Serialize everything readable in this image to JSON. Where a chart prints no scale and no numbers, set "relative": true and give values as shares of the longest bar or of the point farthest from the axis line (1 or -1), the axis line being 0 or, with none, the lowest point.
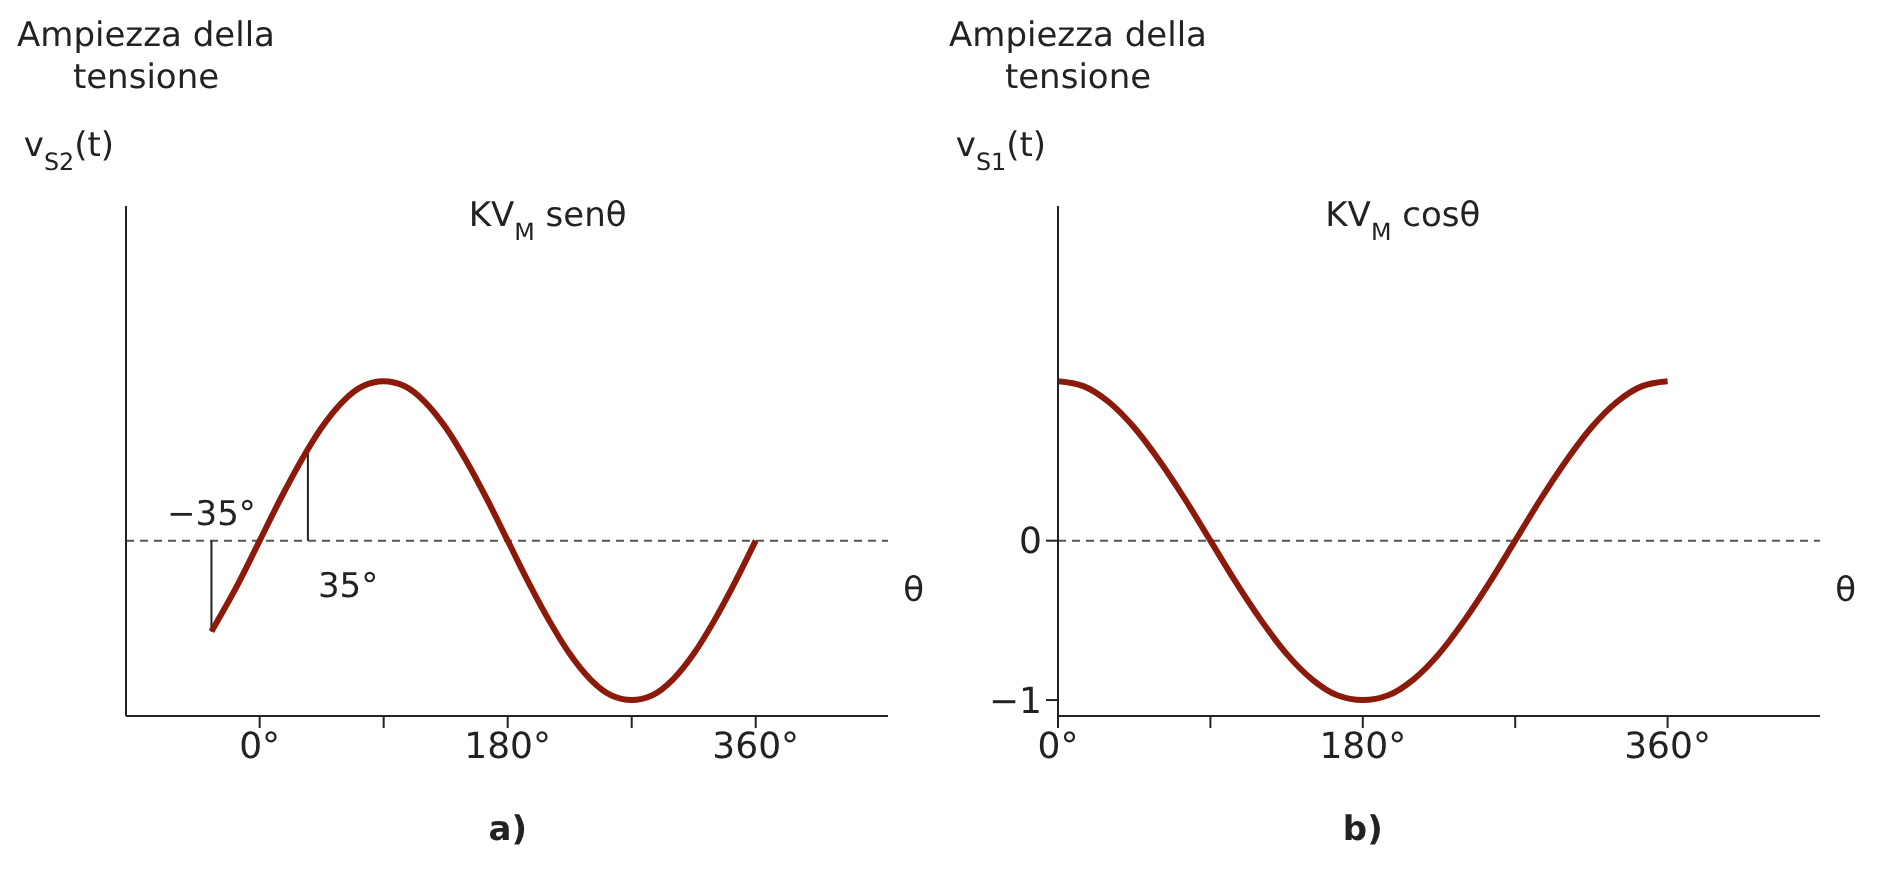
{
  "chart_data": [
    {
      "type": "line",
      "title": "Ampiezza della tensione",
      "ylabel": "v$_{S2}$(t)",
      "xlabel": "θ",
      "relative": true,
      "marker": "none",
      "line_style": "solid",
      "grid": false,
      "legend": false,
      "x": [
        -35,
        -15,
        0,
        15,
        30,
        45,
        60,
        75,
        90,
        105,
        120,
        135,
        150,
        165,
        180,
        195,
        210,
        225,
        240,
        255,
        270,
        285,
        300,
        315,
        330,
        345,
        360
      ],
      "series": [
        {
          "color": "#8b1a0a",
          "values": [
            -0.57,
            -0.26,
            0,
            0.26,
            0.5,
            0.71,
            0.87,
            0.97,
            1,
            0.97,
            0.87,
            0.71,
            0.5,
            0.26,
            0,
            -0.26,
            -0.5,
            -0.71,
            -0.87,
            -0.97,
            -1,
            -0.97,
            -0.87,
            -0.71,
            -0.5,
            -0.26,
            0
          ]
        }
      ],
      "xlim": [
        -97,
        456
      ],
      "xticks": [
        {
          "value": 0,
          "label": "0°"
        },
        {
          "value": 90,
          "label": null
        },
        {
          "value": 180,
          "label": "180°"
        },
        {
          "value": 270,
          "label": null
        },
        {
          "value": 360,
          "label": "360°"
        }
      ],
      "ref_lines": [
        {
          "axis": "y",
          "value": 0,
          "line_style": "dashed",
          "color": "#555555"
        }
      ],
      "annotations": [
        "KV$_{M}$ senθ",
        {
          "text": "−35°",
          "x": -35,
          "y": -0.57
        },
        {
          "text": "35°",
          "x": 35,
          "y": 0.57
        },
        "a)"
      ]
    },
    {
      "type": "line",
      "title": "Ampiezza della tensione",
      "ylabel": "v$_{S1}$(t)",
      "xlabel": "θ",
      "marker": "none",
      "line_style": "solid",
      "grid": false,
      "legend": false,
      "x": [
        0,
        15,
        30,
        45,
        60,
        75,
        90,
        105,
        120,
        135,
        150,
        165,
        180,
        195,
        210,
        225,
        240,
        255,
        270,
        285,
        300,
        315,
        330,
        345,
        360
      ],
      "series": [
        {
          "color": "#8b1a0a",
          "values": [
            1,
            0.97,
            0.87,
            0.71,
            0.5,
            0.26,
            0,
            -0.26,
            -0.5,
            -0.71,
            -0.87,
            -0.97,
            -1,
            -0.97,
            -0.87,
            -0.71,
            -0.5,
            -0.26,
            0,
            0.26,
            0.5,
            0.71,
            0.87,
            0.97,
            1
          ]
        }
      ],
      "xlim": [
        0,
        450
      ],
      "xticks": [
        {
          "value": 0,
          "label": "0°"
        },
        {
          "value": 90,
          "label": null
        },
        {
          "value": 180,
          "label": "180°"
        },
        {
          "value": 270,
          "label": null
        },
        {
          "value": 360,
          "label": "360°"
        }
      ],
      "ylim": [
        -1.1,
        2.1
      ],
      "yticks": [
        {
          "value": -1,
          "label": "−1"
        },
        {
          "value": 0,
          "label": "0"
        }
      ],
      "ref_lines": [
        {
          "axis": "y",
          "value": 0,
          "line_style": "dashed",
          "color": "#555555"
        }
      ],
      "annotations": [
        "KV$_{M}$ cosθ",
        "b)"
      ]
    }
  ]
}
